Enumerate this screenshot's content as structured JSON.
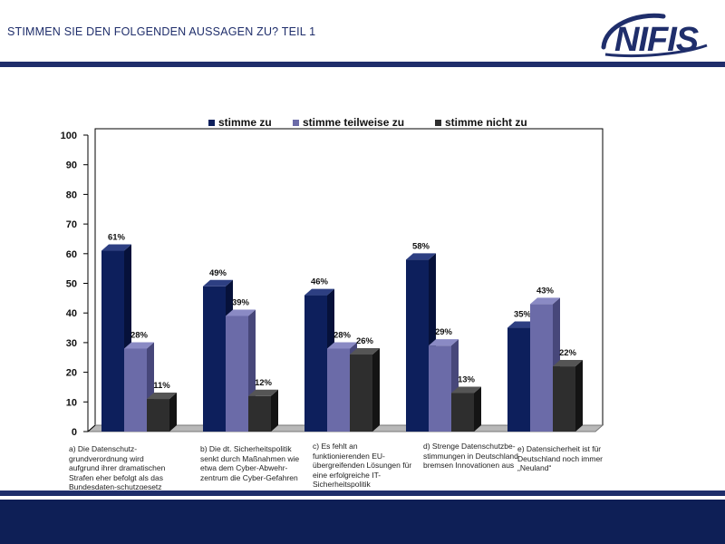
{
  "header": {
    "title": "STIMMEN SIE DEN FOLGENDEN AUSSAGEN ZU? TEIL 1"
  },
  "logo": {
    "text": "NIFIS",
    "color": "#1f2e6b"
  },
  "colors": {
    "primary": "#1f2e6b",
    "footer": "#0e1f56"
  },
  "chart_data": {
    "type": "bar",
    "title": "",
    "xlabel": "",
    "ylabel": "",
    "ylim": [
      0,
      100
    ],
    "yticks": [
      0,
      10,
      20,
      30,
      40,
      50,
      60,
      70,
      80,
      90,
      100
    ],
    "grid": false,
    "legend_position": "top",
    "categories": [
      "a) Die Datenschutz-grundverordnung wird aufgrund ihrer dramatischen Strafen eher befolgt als das Bundesdaten-schutzgesetz bisher",
      "b) Die dt. Sicherheitspolitik senkt durch Maßnahmen wie etwa dem Cyber-Abwehr-zentrum die Cyber-Gefahren",
      "c) Es fehlt an funktionierenden EU-übergreifenden Lösungen für eine erfolgreiche IT-Sicherheitspolitik",
      "d) Strenge Datenschutzbe-stimmungen in Deutschland bremsen Innovationen aus",
      "e) Datensicherheit ist für Deutschland noch immer „Neuland“"
    ],
    "series": [
      {
        "name": "stimme zu",
        "color": "#0d1f5c",
        "side": "#06113a",
        "top": "#2d3f82",
        "values": [
          61,
          49,
          46,
          58,
          35
        ],
        "labels": [
          "61%",
          "49%",
          "46%",
          "58%",
          "35%"
        ]
      },
      {
        "name": "stimme teilweise zu",
        "color": "#6b6ba8",
        "side": "#47477a",
        "top": "#8a8ac4",
        "values": [
          28,
          39,
          28,
          29,
          43
        ],
        "labels": [
          "28%",
          "39%",
          "28%",
          "29%",
          "43%"
        ]
      },
      {
        "name": "stimme nicht zu",
        "color": "#2e2e2e",
        "side": "#141414",
        "top": "#555555",
        "values": [
          11,
          12,
          26,
          13,
          22
        ],
        "labels": [
          "11%",
          "12%",
          "26%",
          "13%",
          "22%"
        ]
      }
    ]
  }
}
